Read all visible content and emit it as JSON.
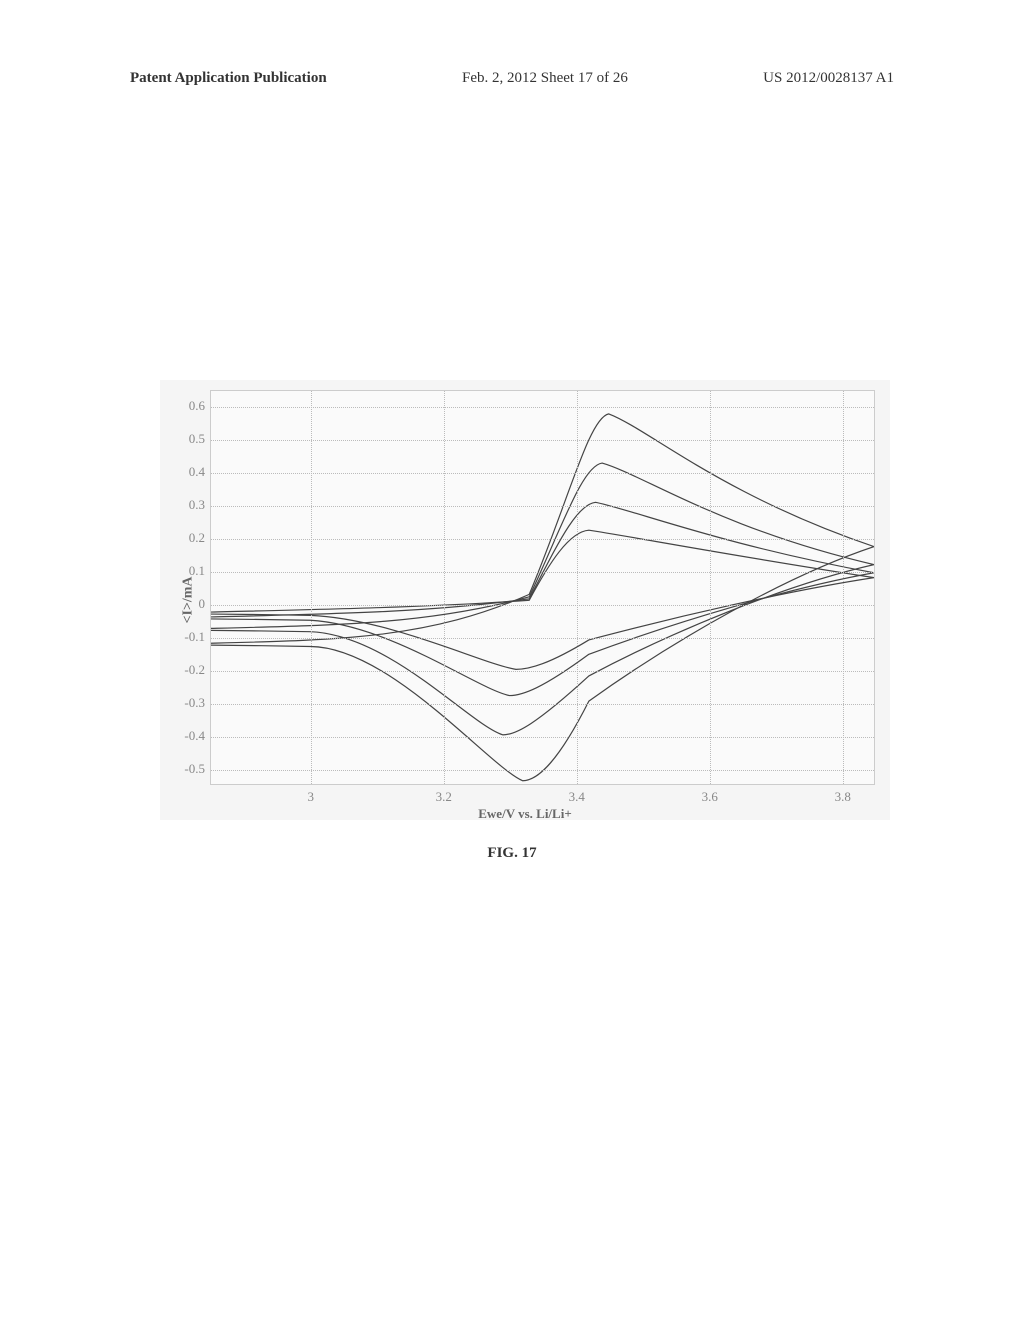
{
  "header": {
    "left": "Patent Application Publication",
    "center": "Feb. 2, 2012   Sheet 17 of 26",
    "right": "US 2012/0028137 A1"
  },
  "chart": {
    "type": "cyclic_voltammogram",
    "xlabel": "Ewe/V vs. Li/Li+",
    "ylabel": "<I>/mA",
    "xlim": [
      2.85,
      3.85
    ],
    "ylim": [
      -0.55,
      0.65
    ],
    "y_ticks": [
      -0.5,
      -0.4,
      -0.3,
      -0.2,
      -0.1,
      0,
      0.1,
      0.2,
      0.3,
      0.4,
      0.5,
      0.6
    ],
    "y_tick_labels": [
      "-0.5",
      "-0.4",
      "-0.3",
      "-0.2",
      "-0.1",
      "0",
      "0.1",
      "0.2",
      "0.3",
      "0.4",
      "0.5",
      "0.6"
    ],
    "x_ticks": [
      3,
      3.2,
      3.4,
      3.6,
      3.8
    ],
    "x_tick_labels": [
      "3",
      "3.2",
      "3.4",
      "3.6",
      "3.8"
    ],
    "background_color": "#fafafa",
    "grid_color": "#bbbbbb",
    "line_color": "#444444",
    "line_width": 1.2,
    "curves": [
      {
        "anodic_peak_x": 3.42,
        "anodic_peak_y": 0.225,
        "cathodic_peak_x": 3.31,
        "cathodic_peak_y": -0.2,
        "start_y": -0.025,
        "end_y": 0.08
      },
      {
        "anodic_peak_x": 3.43,
        "anodic_peak_y": 0.31,
        "cathodic_peak_x": 3.3,
        "cathodic_peak_y": -0.28,
        "start_y": -0.04,
        "end_y": 0.095
      },
      {
        "anodic_peak_x": 3.44,
        "anodic_peak_y": 0.43,
        "cathodic_peak_x": 3.29,
        "cathodic_peak_y": -0.4,
        "start_y": -0.075,
        "end_y": 0.12
      },
      {
        "anodic_peak_x": 3.45,
        "anodic_peak_y": 0.58,
        "cathodic_peak_x": 3.32,
        "cathodic_peak_y": -0.54,
        "start_y": -0.12,
        "end_y": 0.175
      }
    ]
  },
  "caption": "FIG. 17"
}
